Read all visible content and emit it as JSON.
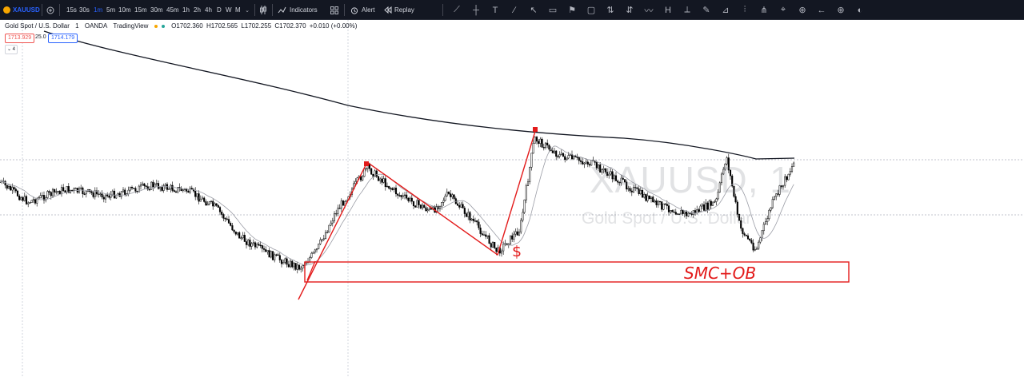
{
  "toolbar": {
    "symbol": "XAUUSD",
    "intervals": [
      "15s",
      "30s",
      "1m",
      "5m",
      "10m",
      "15m",
      "30m",
      "45m",
      "1h",
      "2h",
      "4h",
      "D",
      "W",
      "M"
    ],
    "active_interval": "1m",
    "indicators_label": "Indicators",
    "alert_label": "Alert",
    "replay_label": "Replay",
    "drawing_tools": [
      "trend-line",
      "cross-line",
      "text",
      "brush",
      "arrow",
      "rectangle",
      "flag",
      "callout",
      "long-position",
      "short-position",
      "wave",
      "fib-retracement",
      "ruler",
      "brush-alt",
      "measure",
      "forecast",
      "pitchfork",
      "cursor",
      "lock",
      "arrow-left",
      "plus-circle",
      "eye"
    ]
  },
  "legend": {
    "title": "Gold Spot / U.S. Dollar",
    "interval": "1",
    "source": "OANDA",
    "provider": "TradingView",
    "open": "O1702.360",
    "high": "H1702.565",
    "low": "L1702.255",
    "close": "C1702.370",
    "change": "+0.010 (+0.00%)",
    "bid": "1713.929",
    "spread": "25.0",
    "ask": "1714.179",
    "collapse_count": "4"
  },
  "watermark": {
    "symbol": "XAUUSD, 1",
    "description": "Gold Spot / U.S. Dollar"
  },
  "annotations": {
    "dollar_mark": "$",
    "order_block_label": "SMC+OB"
  },
  "colors": {
    "toolbar_bg": "#131722",
    "candle": "#000000",
    "moving_average": "#131722",
    "annotation": "#e31b1b",
    "active_interval": "#2962ff"
  }
}
